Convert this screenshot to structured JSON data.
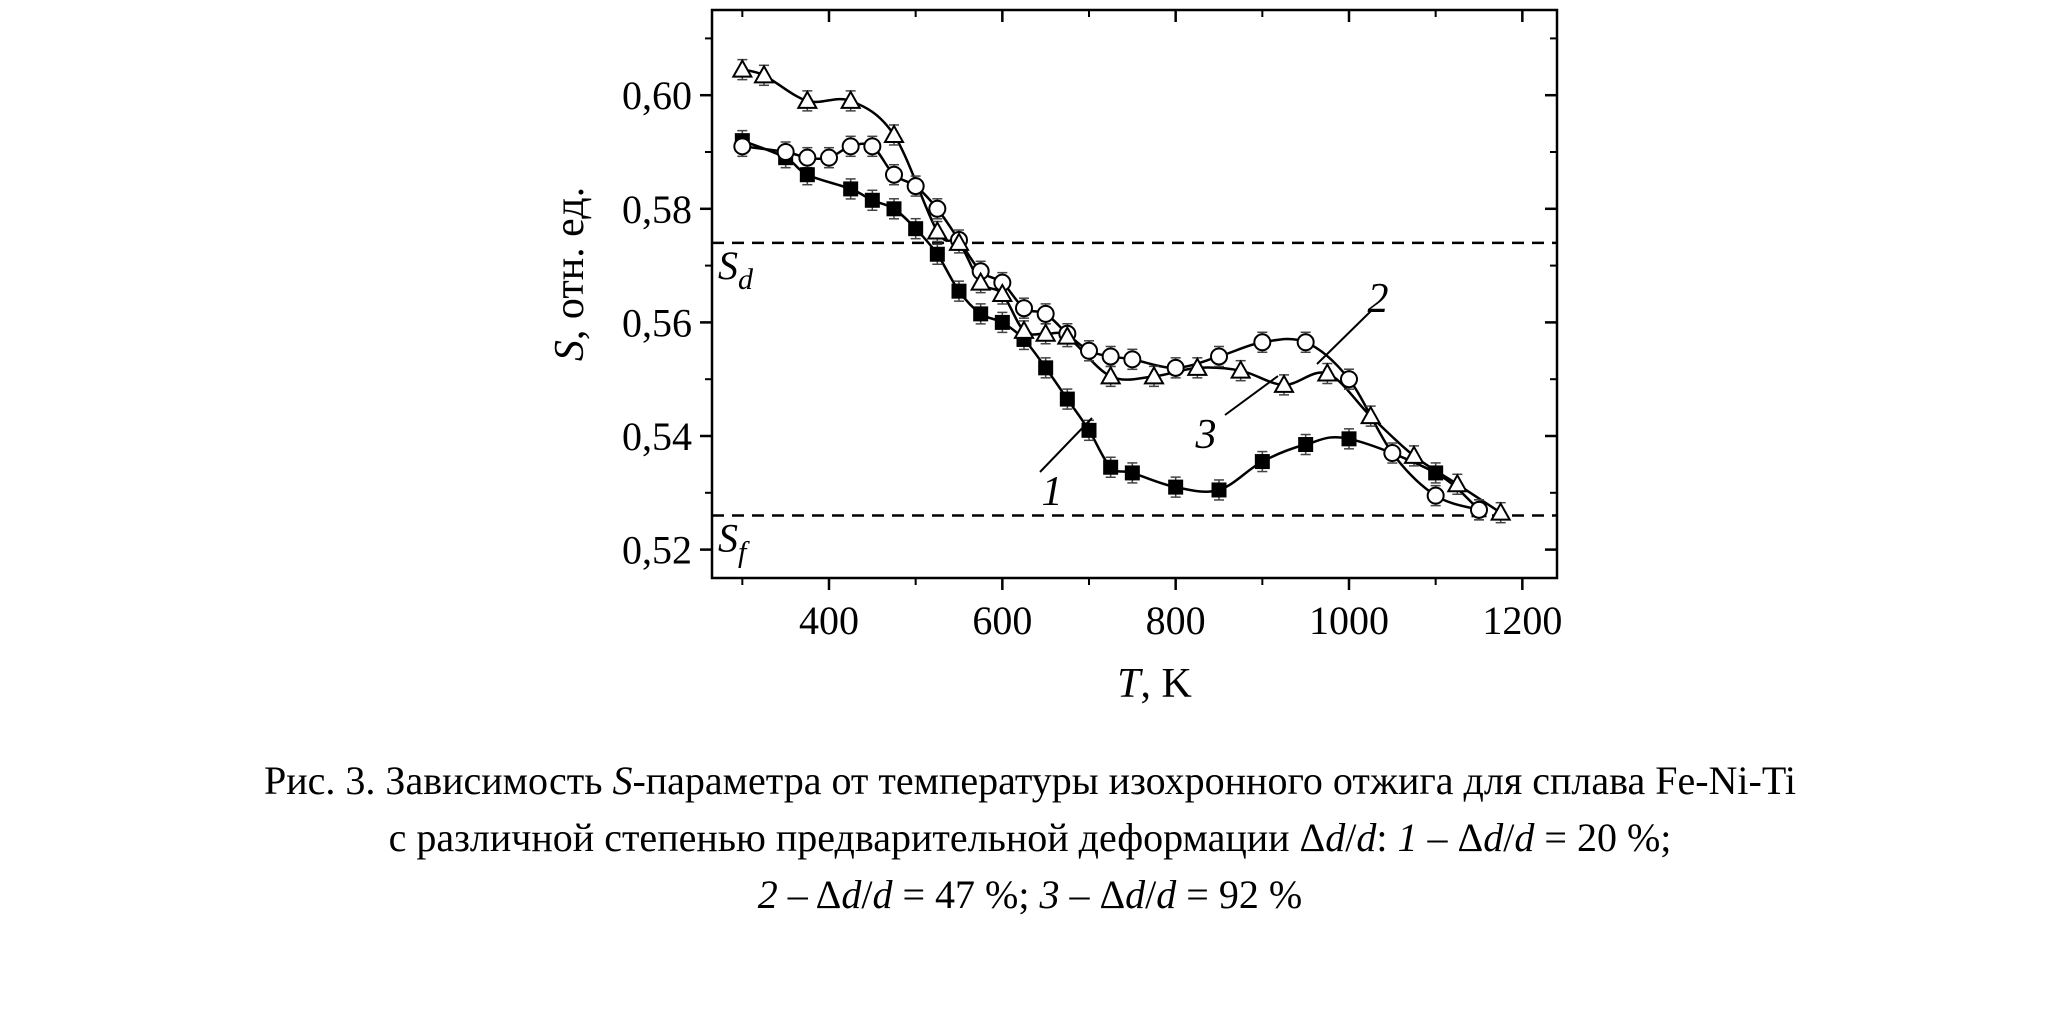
{
  "chart_data": {
    "type": "line",
    "xlabel_var": "T",
    "xlabel_unit": ", K",
    "ylabel_var": "S",
    "ylabel_unit": ", отн. ед.",
    "xlim": [
      265,
      1240
    ],
    "ylim": [
      0.515,
      0.615
    ],
    "xticks": [
      400,
      600,
      800,
      1000,
      1200
    ],
    "xtick_labels": [
      "400",
      "600",
      "800",
      "1000",
      "1200"
    ],
    "yticks": [
      0.52,
      0.54,
      0.56,
      0.58,
      0.6
    ],
    "ytick_labels": [
      "0,52",
      "0,54",
      "0,56",
      "0,58",
      "0,60"
    ],
    "grid": false,
    "reference_lines": [
      {
        "var": "S",
        "sub": "d",
        "y": 0.574
      },
      {
        "var": "S",
        "sub": "f",
        "y": 0.526
      }
    ],
    "series": [
      {
        "name": "1",
        "marker": "filled-square",
        "x": [
          300,
          350,
          375,
          425,
          450,
          475,
          500,
          525,
          550,
          575,
          600,
          625,
          650,
          675,
          700,
          725,
          750,
          800,
          850,
          900,
          950,
          1000,
          1100,
          1150
        ],
        "y": [
          0.592,
          0.589,
          0.586,
          0.5835,
          0.5815,
          0.58,
          0.5765,
          0.572,
          0.5655,
          0.5615,
          0.56,
          0.557,
          0.552,
          0.5465,
          0.541,
          0.5345,
          0.5335,
          0.531,
          0.5305,
          0.5355,
          0.5385,
          0.5395,
          0.5335,
          0.527
        ]
      },
      {
        "name": "2",
        "marker": "open-circle",
        "x": [
          300,
          350,
          375,
          400,
          425,
          450,
          475,
          500,
          525,
          550,
          575,
          600,
          625,
          650,
          675,
          700,
          725,
          750,
          800,
          850,
          900,
          950,
          1000,
          1050,
          1100,
          1150
        ],
        "y": [
          0.591,
          0.59,
          0.589,
          0.589,
          0.591,
          0.591,
          0.586,
          0.584,
          0.58,
          0.5745,
          0.569,
          0.567,
          0.5625,
          0.5615,
          0.558,
          0.555,
          0.554,
          0.5535,
          0.552,
          0.554,
          0.5565,
          0.5565,
          0.55,
          0.537,
          0.5295,
          0.527
        ]
      },
      {
        "name": "3",
        "marker": "open-triangle",
        "x": [
          300,
          325,
          375,
          425,
          475,
          525,
          550,
          575,
          600,
          625,
          650,
          675,
          725,
          775,
          825,
          875,
          925,
          975,
          1025,
          1075,
          1125,
          1175
        ],
        "y": [
          0.6045,
          0.6035,
          0.599,
          0.599,
          0.593,
          0.576,
          0.574,
          0.567,
          0.565,
          0.5585,
          0.558,
          0.5575,
          0.5505,
          0.5505,
          0.552,
          0.5515,
          0.549,
          0.551,
          0.5435,
          0.5365,
          0.5315,
          0.5265
        ]
      }
    ],
    "curve_labels": [
      "1",
      "2",
      "3"
    ]
  },
  "caption": {
    "l1_a": "Рис. 3. Зависимость ",
    "l1_b": "S",
    "l1_c": "-параметра от температуры изохронного отжига для сплава Fe-Ni-Ti",
    "l2_a": "с различной степенью предварительной деформации Δ",
    "l2_b": "d",
    "l2_c": "/",
    "l2_d": "d",
    "l2_e": ": ",
    "l2_f": "1",
    "l2_g": " – Δ",
    "l2_h": "d",
    "l2_i": "/",
    "l2_j": "d",
    "l2_k": " = 20 %;",
    "l3_a": "2",
    "l3_b": " – Δ",
    "l3_c": "d",
    "l3_d": "/",
    "l3_e": "d",
    "l3_f": " = 47 %; ",
    "l3_g": "3",
    "l3_h": " – Δ",
    "l3_i": "d",
    "l3_j": "/",
    "l3_k": "d",
    "l3_l": " = 92 %"
  }
}
